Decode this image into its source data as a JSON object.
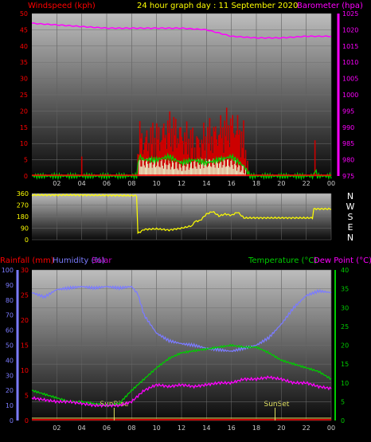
{
  "header": {
    "windspeed_label": "Windspeed (kph)",
    "title": "24 hour graph day : 11 September 2020",
    "barometer_label": "Barometer (hpa)"
  },
  "panel3_header": {
    "rainfall_label": "Rainfall (mm)",
    "humidity_label": "Humidity (%)",
    "solar_label": "Solar",
    "temperature_label": "Temperature (°C)",
    "dewpoint_label": "Dew Point (°C)"
  },
  "x_ticks": [
    "02",
    "04",
    "06",
    "08",
    "10",
    "12",
    "14",
    "16",
    "18",
    "20",
    "22",
    "00"
  ],
  "compass": [
    "N",
    "W",
    "S",
    "E",
    "N"
  ],
  "markers": {
    "sunrise": "SunRise",
    "sunset": "SunSet"
  },
  "colors": {
    "windspeed": "#ff0000",
    "gust_bar": "#cc0000",
    "wind_avg": "#00cc00",
    "wind_light": "#e8e8c0",
    "barometer": "#ff00ff",
    "direction": "#ffff00",
    "humidity": "#7b7bff",
    "temperature": "#00cc00",
    "dewpoint": "#ff00ff",
    "rainfall": "#cc0000",
    "solar": "#e0e060",
    "title": "#ffff00"
  },
  "chart_data": [
    {
      "type": "line",
      "title": "24 hour graph day : 11 September 2020",
      "ylabel": "Windspeed (kph)",
      "y2label": "Barometer (hpa)",
      "ylim": [
        0,
        50
      ],
      "y2lim": [
        975,
        1025
      ],
      "yticks": [
        0,
        5,
        10,
        15,
        20,
        25,
        30,
        35,
        40,
        45,
        50
      ],
      "y2ticks": [
        975,
        980,
        985,
        990,
        995,
        1000,
        1005,
        1010,
        1015,
        1020,
        1025
      ],
      "xlim_hours": [
        0,
        24
      ],
      "series": [
        {
          "name": "Barometer (hpa)",
          "axis": "right",
          "x": [
            0,
            2,
            4,
            6,
            8,
            10,
            12,
            14,
            16,
            18,
            19,
            20,
            22,
            24
          ],
          "values": [
            1022,
            1021.5,
            1021,
            1020.5,
            1020.5,
            1020.5,
            1020.5,
            1020,
            1018,
            1017.5,
            1017.5,
            1017.5,
            1018,
            1018
          ]
        },
        {
          "name": "Windspeed (kph)",
          "axis": "left",
          "x": [
            0,
            3.9,
            4.0,
            4.1,
            8.4,
            8.6,
            9,
            10,
            11,
            12,
            13,
            14,
            15,
            16,
            16.5,
            17,
            17.3,
            17.6,
            22.6,
            22.7,
            22.8,
            24
          ],
          "values": [
            0,
            0,
            6,
            0,
            0,
            12,
            10,
            11,
            14,
            12,
            9,
            11,
            13,
            15,
            14,
            10,
            2,
            0,
            0,
            11,
            0,
            0
          ]
        },
        {
          "name": "Wind average",
          "axis": "left",
          "x": [
            0,
            8.4,
            8.6,
            9,
            10,
            11,
            12,
            13,
            14,
            15,
            16,
            17,
            17.5,
            22.6,
            22.7,
            22.9,
            24
          ],
          "values": [
            0,
            0,
            6,
            5,
            5,
            6,
            4,
            5,
            4,
            5,
            6,
            3,
            0,
            0,
            2,
            0,
            0
          ]
        },
        {
          "name": "Wind low",
          "axis": "left",
          "x": [
            0,
            8.4,
            8.6,
            10,
            12,
            14,
            16,
            17,
            17.5,
            24
          ],
          "values": [
            0,
            0,
            4,
            4,
            3,
            4,
            4,
            2,
            0,
            0
          ]
        }
      ]
    },
    {
      "type": "line",
      "ylabel": "Wind direction",
      "ylim": [
        0,
        360
      ],
      "yticks": [
        0,
        90,
        180,
        270,
        360
      ],
      "xlim_hours": [
        0,
        24
      ],
      "series": [
        {
          "name": "Wind direction (deg)",
          "x": [
            0,
            4,
            8.45,
            8.5,
            9,
            10,
            11,
            12,
            12.9,
            13,
            13.5,
            14,
            14.5,
            15,
            15.5,
            16,
            16.5,
            17,
            17.5,
            18,
            20,
            22.5,
            22.6,
            24
          ],
          "values": [
            348,
            348,
            343,
            50,
            80,
            85,
            75,
            90,
            110,
            140,
            150,
            200,
            220,
            185,
            200,
            190,
            215,
            170,
            170,
            170,
            170,
            170,
            240,
            240
          ]
        }
      ]
    },
    {
      "type": "line",
      "y_left_outer_label": "Rainfall (mm)",
      "y_left_outer_lim": [
        0,
        100
      ],
      "y_left_outer_ticks": [
        0,
        10,
        20,
        30,
        40,
        50,
        60,
        70,
        80,
        90,
        100
      ],
      "y_left_inner_lim": [
        0,
        30
      ],
      "y_left_inner_ticks": [
        0,
        5,
        10,
        15,
        20,
        25,
        30
      ],
      "y_right_lim": [
        0,
        40
      ],
      "y_right_ticks": [
        0,
        5,
        10,
        15,
        20,
        25,
        30,
        35,
        40
      ],
      "xlim_hours": [
        0,
        24
      ],
      "series": [
        {
          "name": "Humidity (%)",
          "axis": "left_outer",
          "x": [
            0,
            1,
            2,
            3,
            4,
            5,
            6,
            7,
            8,
            8.5,
            9,
            10,
            11,
            12,
            13,
            14,
            15,
            16,
            17,
            18,
            19,
            20,
            21,
            22,
            23,
            24
          ],
          "values": [
            85,
            82,
            87,
            88,
            89,
            88,
            89,
            88,
            89,
            84,
            70,
            58,
            53,
            51,
            50,
            48,
            47,
            46,
            48,
            50,
            55,
            64,
            75,
            83,
            86,
            85
          ]
        },
        {
          "name": "Temperature (°C)",
          "axis": "right",
          "x": [
            0,
            1,
            2,
            3,
            4,
            5,
            6,
            7,
            8,
            9,
            10,
            11,
            12,
            13,
            14,
            15,
            16,
            17,
            18,
            19,
            20,
            21,
            22,
            23,
            24
          ],
          "values": [
            8,
            7,
            6,
            5,
            5,
            4.5,
            4,
            4.5,
            8,
            11,
            14,
            16.5,
            18,
            18.5,
            19,
            19.5,
            20,
            19.5,
            19.5,
            18,
            16,
            15,
            14,
            13,
            11
          ]
        },
        {
          "name": "Dew Point (°C)",
          "axis": "right",
          "x": [
            0,
            1,
            2,
            3,
            4,
            5,
            6,
            7,
            8,
            9,
            10,
            11,
            12,
            13,
            14,
            15,
            16,
            17,
            18,
            19,
            20,
            21,
            22,
            23,
            24
          ],
          "values": [
            6,
            5.5,
            5,
            5,
            4.5,
            4,
            4,
            4,
            5,
            8,
            9.5,
            9,
            9.5,
            9,
            9.5,
            10,
            10,
            11,
            11,
            11.5,
            11,
            10,
            10,
            9,
            8.5
          ]
        },
        {
          "name": "Rainfall (mm)",
          "axis": "left_outer",
          "x": [
            0,
            24
          ],
          "values": [
            0,
            0
          ]
        }
      ],
      "annotations": [
        {
          "text": "SunRise",
          "x_hour": 6.6
        },
        {
          "text": "SunSet",
          "x_hour": 19.5
        }
      ]
    }
  ]
}
